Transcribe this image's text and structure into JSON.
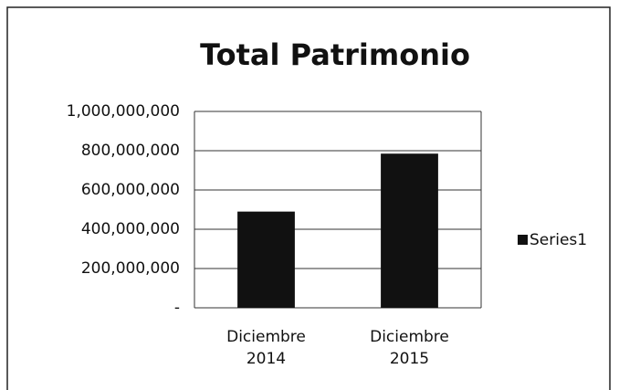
{
  "chart_data": {
    "type": "bar",
    "title": "Total Patrimonio",
    "categories": [
      "Diciembre 2014",
      "Diciembre 2015"
    ],
    "series": [
      {
        "name": "Series1",
        "color": "#111111",
        "values": [
          490000000,
          785000000
        ]
      }
    ],
    "ylim": [
      0,
      1000000000
    ],
    "yticks": [
      {
        "value": 0,
        "label": "-"
      },
      {
        "value": 200000000,
        "label": "200,000,000"
      },
      {
        "value": 400000000,
        "label": "400,000,000"
      },
      {
        "value": 600000000,
        "label": "600,000,000"
      },
      {
        "value": 800000000,
        "label": "800,000,000"
      },
      {
        "value": 1000000000,
        "label": "1,000,000,000"
      }
    ],
    "grid": true,
    "legend": "right"
  }
}
